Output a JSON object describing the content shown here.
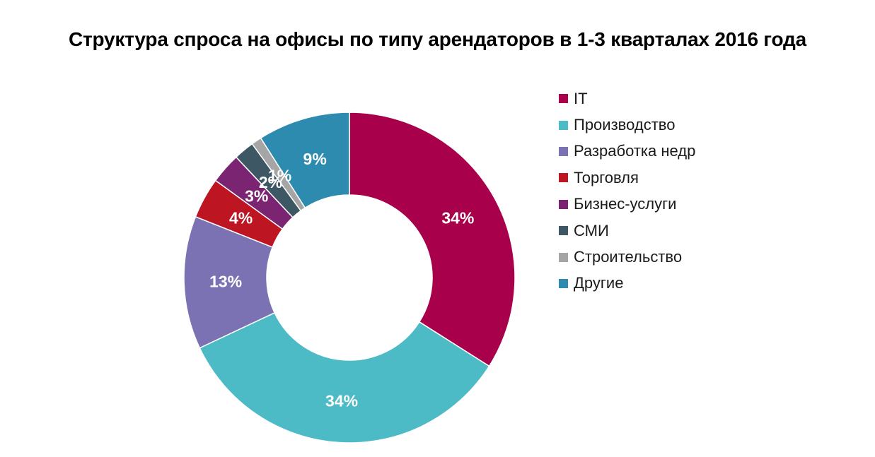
{
  "chart_data": {
    "type": "pie",
    "title": "Структура спроса на офисы по типу арендаторов в 1-3 кварталах 2016 года",
    "categories": [
      "IT",
      "Производство",
      "Разработка недр",
      "Торговля",
      "Бизнес-услуги",
      "СМИ",
      "Строительство",
      "Другие"
    ],
    "values": [
      34,
      34,
      13,
      4,
      3,
      2,
      1,
      9
    ],
    "labels": [
      "34%",
      "34%",
      "13%",
      "4%",
      "3%",
      "2%",
      "1%",
      "9%"
    ],
    "colors": [
      "#A8004A",
      "#4DBBC6",
      "#7B72B3",
      "#BD1622",
      "#7B2572",
      "#3E5764",
      "#A5A5A5",
      "#2E8BB0"
    ],
    "donut": true,
    "legend_position": "right"
  }
}
